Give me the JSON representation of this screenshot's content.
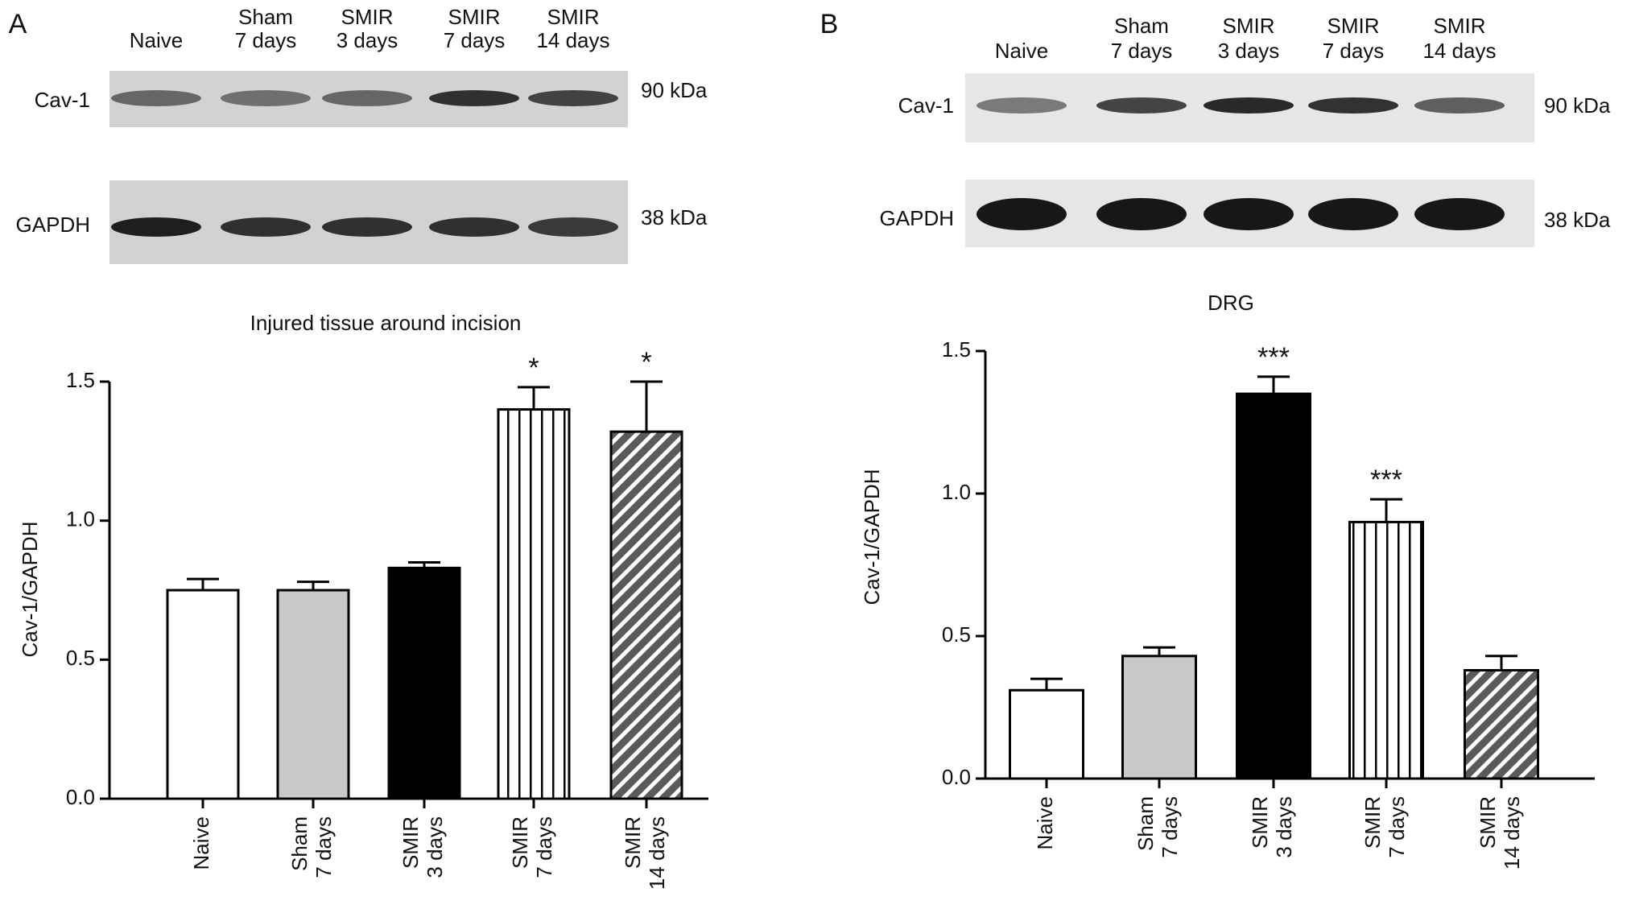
{
  "panels": [
    {
      "label": "A",
      "lanes": [
        [
          "Naive"
        ],
        [
          "Sham",
          "7 days"
        ],
        [
          "SMIR",
          "3 days"
        ],
        [
          "SMIR",
          "7 days"
        ],
        [
          "SMIR",
          "14 days"
        ]
      ],
      "blots": [
        {
          "protein": "Cav-1",
          "weight": "90 kDa"
        },
        {
          "protein": "GAPDH",
          "weight": "38 kDa"
        }
      ]
    },
    {
      "label": "B",
      "lanes": [
        [
          "Naive"
        ],
        [
          "Sham",
          "7 days"
        ],
        [
          "SMIR",
          "3 days"
        ],
        [
          "SMIR",
          "7 days"
        ],
        [
          "SMIR",
          "14 days"
        ]
      ],
      "blots": [
        {
          "protein": "Cav-1",
          "weight": "90 kDa"
        },
        {
          "protein": "GAPDH",
          "weight": "38 kDa"
        }
      ]
    }
  ],
  "chart_data": [
    {
      "type": "bar",
      "title": "Injured tissue around incision",
      "y_label": "Cav-1/GAPDH",
      "categories": [
        [
          "Naive"
        ],
        [
          "Sham",
          "7 days"
        ],
        [
          "SMIR",
          "3 days"
        ],
        [
          "SMIR",
          "7 days"
        ],
        [
          "SMIR",
          "14 days"
        ]
      ],
      "values": [
        0.75,
        0.75,
        0.83,
        1.4,
        1.32
      ],
      "errors": [
        0.04,
        0.03,
        0.02,
        0.08,
        0.18
      ],
      "colors": [
        "#ffffff",
        "#c8c8c8",
        "#000000",
        "#ffffff",
        "#5a5a5a"
      ],
      "patterns": [
        "solid",
        "solid",
        "solid",
        "vertical-stripes",
        "diagonal-stripes"
      ],
      "annotations": [
        {
          "index": 3,
          "text": "*"
        },
        {
          "index": 4,
          "text": "*"
        }
      ],
      "ylim": [
        0,
        1.5
      ],
      "yticks": [
        {
          "value": 0,
          "label": "0.0"
        },
        0.5,
        {
          "value": 1,
          "label": "1.0"
        },
        1.5
      ],
      "grid": false
    },
    {
      "type": "bar",
      "title": "DRG",
      "y_label": "Cav-1/GAPDH",
      "categories": [
        [
          "Naive"
        ],
        [
          "Sham",
          "7 days"
        ],
        [
          "SMIR",
          "3 days"
        ],
        [
          "SMIR",
          "7 days"
        ],
        [
          "SMIR",
          "14 days"
        ]
      ],
      "values": [
        0.31,
        0.43,
        1.35,
        0.9,
        0.38
      ],
      "errors": [
        0.04,
        0.03,
        0.06,
        0.08,
        0.05
      ],
      "colors": [
        "#ffffff",
        "#c8c8c8",
        "#000000",
        "#ffffff",
        "#5a5a5a"
      ],
      "patterns": [
        "solid",
        "solid",
        "solid",
        "vertical-stripes",
        "diagonal-stripes"
      ],
      "annotations": [
        {
          "index": 2,
          "text": "***"
        },
        {
          "index": 3,
          "text": "***"
        }
      ],
      "ylim": [
        0,
        1.5
      ],
      "yticks": [
        {
          "value": 0,
          "label": "0.0"
        },
        0.5,
        {
          "value": 1,
          "label": "1.0"
        },
        1.5
      ],
      "grid": false
    }
  ]
}
